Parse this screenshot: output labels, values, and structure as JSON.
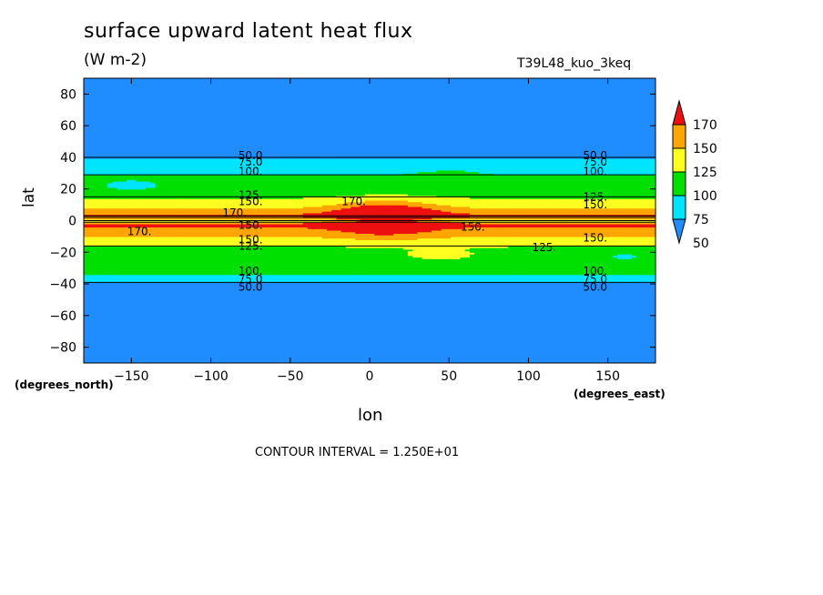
{
  "title": "surface upward latent heat flux",
  "units": "(W m-2)",
  "run_id": "T39L48_kuo_3keq",
  "contour_interval_text": "CONTOUR INTERVAL = 1.250E+01",
  "chart_data": {
    "type": "heatmap",
    "xlabel": "lon",
    "ylabel": "lat",
    "x_units_label": "(degrees_east)",
    "y_units_label": "(degrees_north)",
    "xlim": [
      -180,
      180
    ],
    "ylim": [
      -90,
      90
    ],
    "x_ticks": [
      -150,
      -100,
      -50,
      0,
      50,
      100,
      150
    ],
    "y_ticks": [
      -80,
      -60,
      -40,
      -20,
      0,
      20,
      40,
      60,
      80
    ],
    "colorbar": {
      "levels": [
        50,
        75,
        100,
        125,
        150,
        170
      ],
      "colors": [
        "#1f8cff",
        "#00e5ff",
        "#00e000",
        "#ffff20",
        "#ffa500",
        "#ee1010"
      ],
      "below_color": "#1f8cff",
      "above_color": "#ee1010"
    },
    "zonal_profile": [
      {
        "lat": -90,
        "value": 10
      },
      {
        "lat": -44,
        "value": 25
      },
      {
        "lat": -42,
        "value": 50
      },
      {
        "lat": -39,
        "value": 78
      },
      {
        "lat": -34,
        "value": 100
      },
      {
        "lat": -18,
        "value": 115
      },
      {
        "lat": -16,
        "value": 126
      },
      {
        "lat": -10,
        "value": 150
      },
      {
        "lat": -5,
        "value": 165
      },
      {
        "lat": -2,
        "value": 180
      },
      {
        "lat": 0,
        "value": 130
      },
      {
        "lat": 3,
        "value": 175
      },
      {
        "lat": 8,
        "value": 150
      },
      {
        "lat": 14,
        "value": 126
      },
      {
        "lat": 18,
        "value": 110
      },
      {
        "lat": 34,
        "value": 95
      },
      {
        "lat": 39,
        "value": 78
      },
      {
        "lat": 42,
        "value": 50
      },
      {
        "lat": 44,
        "value": 25
      },
      {
        "lat": 90,
        "value": 10
      }
    ],
    "contour_labels": [
      {
        "text": "50.0",
        "lon": -75,
        "lat": 41
      },
      {
        "text": "75.0",
        "lon": -75,
        "lat": 37
      },
      {
        "text": "100.",
        "lon": -75,
        "lat": 31
      },
      {
        "text": "125.",
        "lon": -75,
        "lat": 16
      },
      {
        "text": "150.",
        "lon": -75,
        "lat": 12
      },
      {
        "text": "170.",
        "lon": -85,
        "lat": 5
      },
      {
        "text": "170.",
        "lon": -145,
        "lat": -7
      },
      {
        "text": "170.",
        "lon": -10,
        "lat": 12
      },
      {
        "text": "150.",
        "lon": -75,
        "lat": -3
      },
      {
        "text": "150.",
        "lon": -75,
        "lat": -12
      },
      {
        "text": "125.",
        "lon": -75,
        "lat": -16
      },
      {
        "text": "100.",
        "lon": -75,
        "lat": -32
      },
      {
        "text": "75.0",
        "lon": -75,
        "lat": -37
      },
      {
        "text": "50.0",
        "lon": -75,
        "lat": -42
      },
      {
        "text": "50.0",
        "lon": 142,
        "lat": 41
      },
      {
        "text": "75.0",
        "lon": 142,
        "lat": 37
      },
      {
        "text": "100.",
        "lon": 142,
        "lat": 31
      },
      {
        "text": "125.",
        "lon": 142,
        "lat": 15
      },
      {
        "text": "150.",
        "lon": 142,
        "lat": 10
      },
      {
        "text": "150.",
        "lon": 65,
        "lat": -4
      },
      {
        "text": "150.",
        "lon": 142,
        "lat": -11
      },
      {
        "text": "125.",
        "lon": 110,
        "lat": -17
      },
      {
        "text": "100.",
        "lon": 142,
        "lat": -32
      },
      {
        "text": "75.0",
        "lon": 142,
        "lat": -37
      },
      {
        "text": "50.0",
        "lon": 142,
        "lat": -42
      }
    ]
  }
}
